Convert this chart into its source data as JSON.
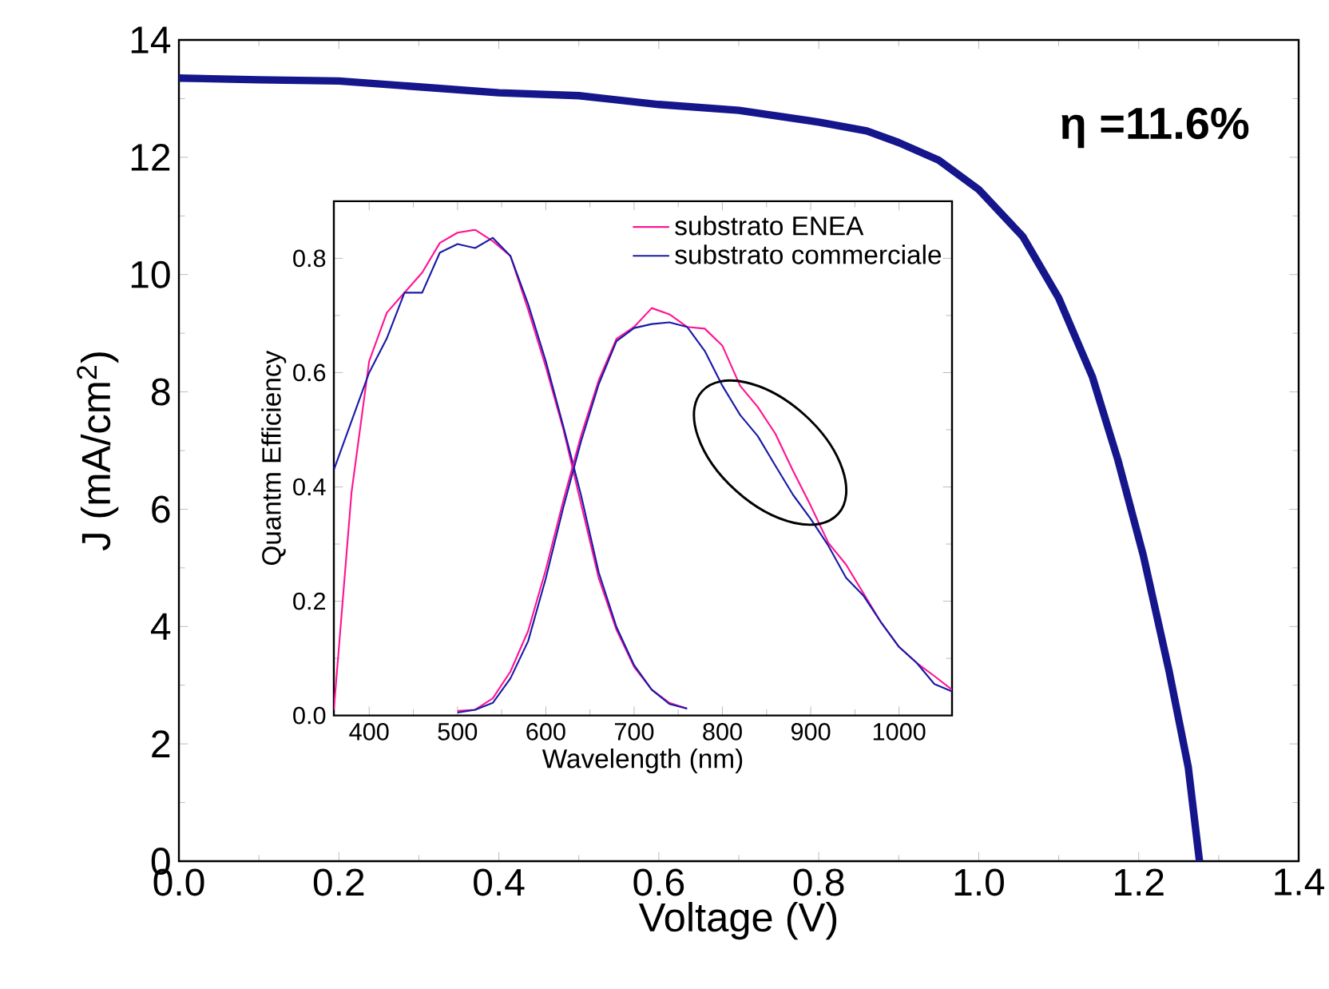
{
  "chart_data": [
    {
      "type": "line",
      "xlabel": "Voltage (V)",
      "ylabel": "J (mA/cm$^{2}$)",
      "annotations": [
        "η =11.6%"
      ],
      "xlim": [
        0,
        1.4
      ],
      "ylim": [
        0,
        14
      ],
      "xticks": [
        {
          "value": 0,
          "label": "0.0"
        },
        0.2,
        0.4,
        0.6,
        0.8,
        {
          "value": 1,
          "label": "1.0"
        },
        1.2,
        1.4
      ],
      "yticks": [
        0,
        2,
        4,
        6,
        8,
        10,
        12,
        14
      ],
      "grid": false,
      "marker": "none",
      "line_style": "solid",
      "series": [
        {
          "color": "#16168c",
          "x": [
            0,
            0.1,
            0.2,
            0.3,
            0.4,
            0.5,
            0.6,
            0.7,
            0.8,
            0.86,
            0.9,
            0.95,
            1.0,
            1.055,
            1.1,
            1.142,
            1.174,
            1.206,
            1.238,
            1.262,
            1.276
          ],
          "values": [
            13.35,
            13.32,
            13.3,
            13.2,
            13.1,
            13.05,
            12.9,
            12.8,
            12.6,
            12.45,
            12.25,
            11.95,
            11.45,
            10.65,
            9.6,
            8.26,
            6.84,
            5.2,
            3.24,
            1.6,
            0
          ]
        }
      ]
    },
    {
      "type": "line",
      "xlabel": "Wavelength (nm)",
      "ylabel": "Quantm Efficiency",
      "xlim": [
        360,
        1060
      ],
      "ylim": [
        0,
        0.9
      ],
      "xticks": [
        400,
        500,
        600,
        700,
        800,
        900,
        1000
      ],
      "yticks": [
        {
          "value": 0,
          "label": "0.0"
        },
        0.2,
        0.4,
        0.6,
        0.8
      ],
      "grid": false,
      "marker": "none",
      "line_style": "solid",
      "legend": "top right",
      "series": [
        {
          "name": "substrato ENEA",
          "color": "#ff1493",
          "x": [
            360,
            380,
            400,
            420,
            440,
            460,
            480,
            500,
            520,
            540,
            560,
            580,
            600,
            620,
            640,
            660,
            680,
            700,
            720,
            740,
            760
          ],
          "values": [
            0.01,
            0.39,
            0.62,
            0.705,
            0.74,
            0.775,
            0.827,
            0.845,
            0.85,
            0.83,
            0.804,
            0.71,
            0.61,
            0.5,
            0.37,
            0.24,
            0.15,
            0.085,
            0.045,
            0.022,
            0.012
          ]
        },
        {
          "name": "substrato commerciale",
          "color": "#1a1aa8",
          "x": [
            360,
            400,
            420,
            440,
            460,
            480,
            500,
            520,
            540,
            560,
            580,
            600,
            620,
            640,
            660,
            680,
            700,
            720,
            740,
            760
          ],
          "values": [
            0.43,
            0.6,
            0.66,
            0.74,
            0.74,
            0.81,
            0.825,
            0.818,
            0.836,
            0.804,
            0.72,
            0.62,
            0.505,
            0.385,
            0.25,
            0.155,
            0.088,
            0.045,
            0.02,
            0.012
          ]
        },
        {
          "color": "#ff1493",
          "x": [
            500,
            520,
            540,
            560,
            580,
            600,
            620,
            640,
            660,
            680,
            700,
            720,
            740,
            760,
            780,
            800,
            820,
            840,
            860,
            880,
            900,
            920,
            940,
            960,
            980,
            1000,
            1020,
            1040,
            1060
          ],
          "values": [
            0.008,
            0.01,
            0.03,
            0.077,
            0.148,
            0.255,
            0.377,
            0.49,
            0.587,
            0.659,
            0.68,
            0.713,
            0.702,
            0.68,
            0.677,
            0.647,
            0.577,
            0.54,
            0.493,
            0.428,
            0.367,
            0.302,
            0.264,
            0.213,
            0.162,
            0.12,
            0.092,
            0.069,
            0.045
          ]
        },
        {
          "color": "#1a1aa8",
          "x": [
            500,
            520,
            540,
            560,
            580,
            600,
            620,
            640,
            660,
            680,
            700,
            720,
            740,
            760,
            780,
            800,
            820,
            840,
            860,
            880,
            900,
            920,
            940,
            960,
            980,
            1000,
            1020,
            1040,
            1060
          ],
          "values": [
            0.005,
            0.01,
            0.022,
            0.065,
            0.13,
            0.24,
            0.365,
            0.48,
            0.58,
            0.655,
            0.678,
            0.685,
            0.688,
            0.68,
            0.638,
            0.577,
            0.526,
            0.489,
            0.437,
            0.386,
            0.344,
            0.297,
            0.241,
            0.209,
            0.162,
            0.12,
            0.092,
            0.055,
            0.042
          ]
        }
      ]
    }
  ]
}
